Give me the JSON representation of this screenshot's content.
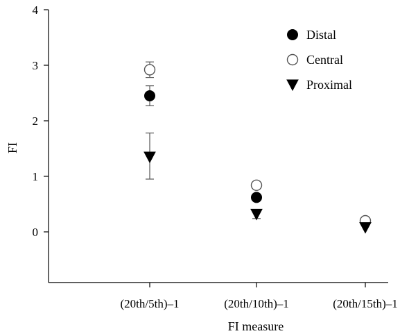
{
  "chart_data": {
    "type": "scatter",
    "xlabel": "FI measure",
    "ylabel": "FI",
    "categories": [
      "(20th/5th)–1",
      "(20th/10th)–1",
      "(20th/15th)–1"
    ],
    "ylim": [
      -0.9,
      4
    ],
    "yticks": [
      "0",
      "1",
      "2",
      "3",
      "4"
    ],
    "legend_position": "top-right",
    "series": [
      {
        "name": "Distal",
        "marker": "filled-circle",
        "color": "#000000",
        "values": [
          2.45,
          0.62,
          null
        ],
        "err_low": [
          2.27,
          null,
          null
        ],
        "err_high": [
          2.63,
          null,
          null
        ]
      },
      {
        "name": "Central",
        "marker": "open-circle",
        "color": "#555555",
        "values": [
          2.92,
          0.84,
          0.2
        ],
        "err_low": [
          2.78,
          null,
          null
        ],
        "err_high": [
          3.06,
          null,
          null
        ]
      },
      {
        "name": "Proximal",
        "marker": "triangle-down",
        "color": "#000000",
        "values": [
          1.35,
          0.32,
          0.08
        ],
        "err_low": [
          0.95,
          0.24,
          null
        ],
        "err_high": [
          1.78,
          0.4,
          null
        ]
      }
    ]
  }
}
